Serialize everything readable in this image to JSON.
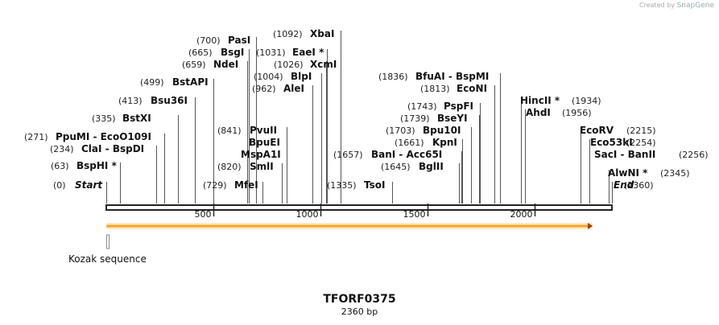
{
  "credit": {
    "prefix": "Created by",
    "brand": "SnapGene"
  },
  "plasmid": {
    "name": "TFORF0375",
    "length_label": "2360 bp",
    "length": 2360
  },
  "ruler": {
    "ticks": [
      500,
      1000,
      1500,
      2000
    ],
    "tick_labels": [
      "500",
      "1000",
      "1500",
      "2000"
    ]
  },
  "features": [
    {
      "name": "Kozak sequence",
      "start": 1,
      "end": 10,
      "color": "#888888"
    },
    {
      "name": "",
      "start": 1,
      "end": 2270,
      "color": "#f5a623",
      "direction": "forward"
    }
  ],
  "sites": [
    {
      "pos": 0,
      "pos_label": "(0)",
      "name": "Start",
      "style": "italic"
    },
    {
      "pos": 63,
      "pos_label": "(63)",
      "name": "BspHI *"
    },
    {
      "pos": 234,
      "pos_label": "(234)",
      "name": "ClaI  - BspDI"
    },
    {
      "pos": 271,
      "pos_label": "(271)",
      "name": "PpuMI  - EcoO109I"
    },
    {
      "pos": 335,
      "pos_label": "(335)",
      "name": "BstXI"
    },
    {
      "pos": 413,
      "pos_label": "(413)",
      "name": "Bsu36I"
    },
    {
      "pos": 499,
      "pos_label": "(499)",
      "name": "BstAPI"
    },
    {
      "pos": 659,
      "pos_label": "(659)",
      "name": "NdeI"
    },
    {
      "pos": 665,
      "pos_label": "(665)",
      "name": "BsgI"
    },
    {
      "pos": 700,
      "pos_label": "(700)",
      "name": "PasI"
    },
    {
      "pos": 729,
      "pos_label": "(729)",
      "name": "MfeI"
    },
    {
      "pos": 820,
      "pos_label": "(820)",
      "name": "SmlI"
    },
    {
      "pos": 841,
      "pos_label": "(841)",
      "name": "PvuII"
    },
    {
      "pos": 841,
      "pos_label": "",
      "name": "BpuEI"
    },
    {
      "pos": 841,
      "pos_label": "",
      "name": "MspA1I"
    },
    {
      "pos": 962,
      "pos_label": "(962)",
      "name": "AleI"
    },
    {
      "pos": 1004,
      "pos_label": "(1004)",
      "name": "BlpI"
    },
    {
      "pos": 1026,
      "pos_label": "(1026)",
      "name": "XcmI"
    },
    {
      "pos": 1031,
      "pos_label": "(1031)",
      "name": "EaeI *"
    },
    {
      "pos": 1092,
      "pos_label": "(1092)",
      "name": "XbaI"
    },
    {
      "pos": 1335,
      "pos_label": "(1335)",
      "name": "TsoI"
    },
    {
      "pos": 1645,
      "pos_label": "(1645)",
      "name": "BglII"
    },
    {
      "pos": 1657,
      "pos_label": "(1657)",
      "name": "BanI  - Acc65I"
    },
    {
      "pos": 1661,
      "pos_label": "(1661)",
      "name": "KpnI"
    },
    {
      "pos": 1703,
      "pos_label": "(1703)",
      "name": "Bpu10I"
    },
    {
      "pos": 1739,
      "pos_label": "(1739)",
      "name": "BseYI"
    },
    {
      "pos": 1743,
      "pos_label": "(1743)",
      "name": "PspFI"
    },
    {
      "pos": 1813,
      "pos_label": "(1813)",
      "name": "EcoNI"
    },
    {
      "pos": 1836,
      "pos_label": "(1836)",
      "name": "BfuAI  - BspMI"
    },
    {
      "pos": 1934,
      "pos_label": "(1934)",
      "name": "HincII *"
    },
    {
      "pos": 1956,
      "pos_label": "(1956)",
      "name": "AhdI"
    },
    {
      "pos": 2215,
      "pos_label": "(2215)",
      "name": "EcoRV"
    },
    {
      "pos": 2254,
      "pos_label": "(2254)",
      "name": "Eco53kI"
    },
    {
      "pos": 2256,
      "pos_label": "(2256)",
      "name": "SacI  - BanII"
    },
    {
      "pos": 2345,
      "pos_label": "(2345)",
      "name": "AlwNI *"
    },
    {
      "pos": 2360,
      "pos_label": "(2360)",
      "name": "End",
      "style": "italic"
    }
  ]
}
